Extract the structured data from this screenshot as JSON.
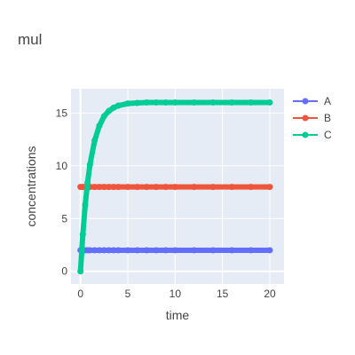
{
  "chart_data": {
    "type": "scatter",
    "title": "mul",
    "xlabel": "time",
    "ylabel": "concentrations",
    "xlim": [
      -1,
      21.5
    ],
    "ylim": [
      -1.2,
      17.3
    ],
    "xticks": [
      0,
      5,
      10,
      15,
      20
    ],
    "yticks": [
      0,
      5,
      10,
      15
    ],
    "grid": true,
    "legend_position": "top-right",
    "x": [
      0,
      0.25,
      0.5,
      0.75,
      1,
      1.5,
      2,
      2.5,
      3,
      3.5,
      4,
      5,
      6,
      7,
      8,
      9,
      10,
      12,
      14,
      16,
      18,
      20
    ],
    "series": [
      {
        "name": "A",
        "color": "#636efa",
        "values": [
          2,
          2,
          2,
          2,
          2,
          2,
          2,
          2,
          2,
          2,
          2,
          2,
          2,
          2,
          2,
          2,
          2,
          2,
          2,
          2,
          2,
          2
        ]
      },
      {
        "name": "B",
        "color": "#EF553B",
        "values": [
          8,
          8,
          8,
          8,
          8,
          8,
          8,
          8,
          8,
          8,
          8,
          8,
          8,
          8,
          8,
          8,
          8,
          8,
          8,
          8,
          8,
          8
        ]
      },
      {
        "name": "C",
        "color": "#00cc96",
        "values": [
          0,
          3.5,
          6.3,
          8.4,
          10.1,
          12.4,
          13.8,
          14.7,
          15.2,
          15.5,
          15.7,
          15.9,
          15.95,
          16,
          16,
          16,
          16,
          16,
          16,
          16,
          16,
          16
        ]
      }
    ]
  }
}
